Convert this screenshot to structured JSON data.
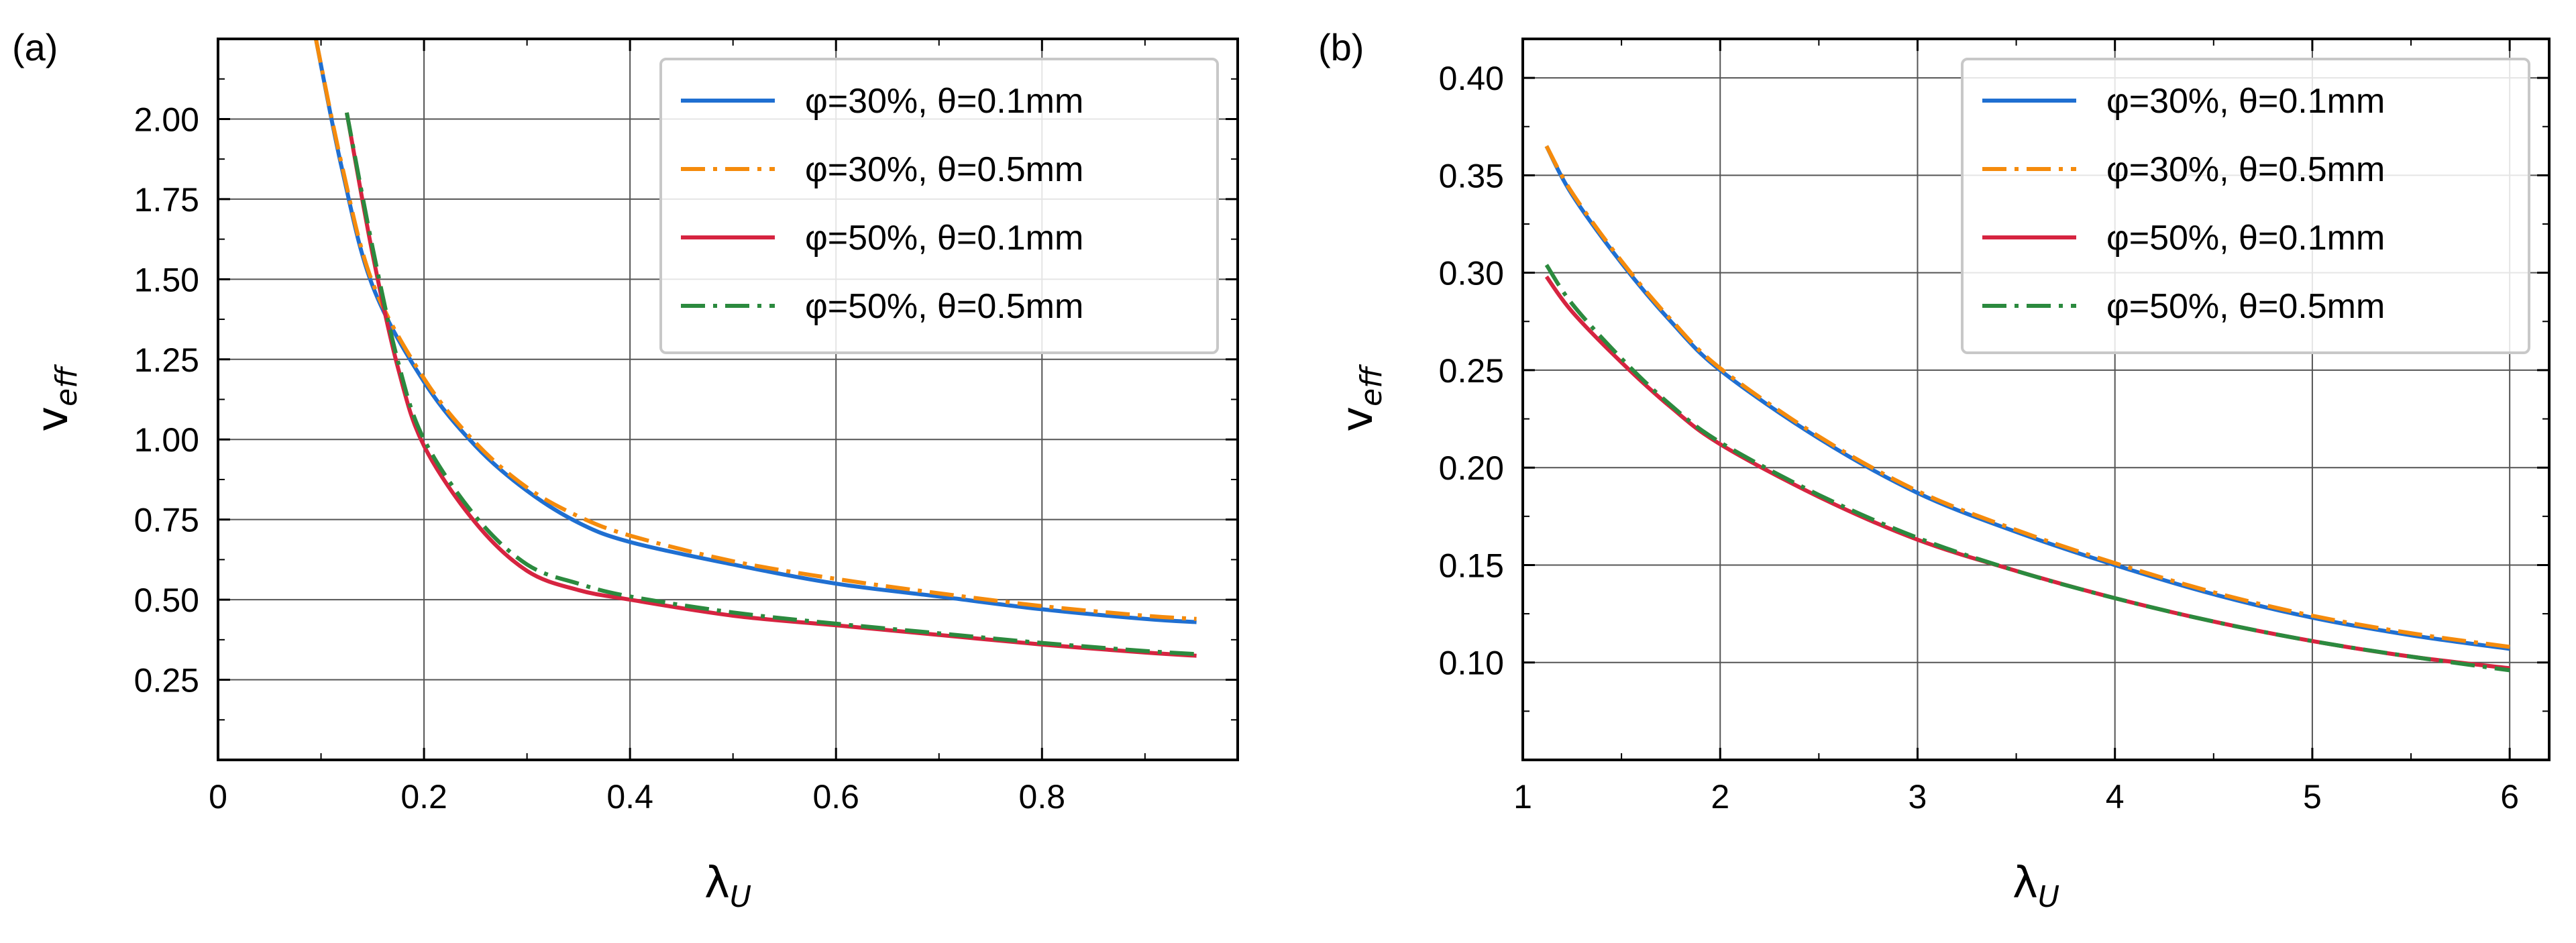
{
  "chart_data": [
    {
      "type": "line",
      "panel_label": "(a)",
      "xlabel": "λ",
      "xlabel_sub": "U",
      "ylabel": "v",
      "ylabel_sub": "eff",
      "xlim": [
        0,
        0.99
      ],
      "ylim": [
        0.0,
        2.25
      ],
      "xticks": [
        0,
        0.2,
        0.4,
        0.6,
        0.8
      ],
      "xtick_labels": [
        "0",
        "0.2",
        "0.4",
        "0.6",
        "0.8"
      ],
      "yticks": [
        0.25,
        0.5,
        0.75,
        1.0,
        1.25,
        1.5,
        1.75,
        2.0
      ],
      "ytick_labels": [
        "0.25",
        "0.50",
        "0.75",
        "1.00",
        "1.25",
        "1.50",
        "1.75",
        "2.00"
      ],
      "grid": true,
      "legend_position": "top-right",
      "series": [
        {
          "name": "φ=30%, θ=0.1mm",
          "color": "#1f6fd1",
          "style": "solid",
          "x": [
            0.095,
            0.12,
            0.15,
            0.2,
            0.25,
            0.3,
            0.35,
            0.4,
            0.5,
            0.6,
            0.7,
            0.8,
            0.9,
            0.95
          ],
          "y": [
            2.25,
            1.85,
            1.48,
            1.18,
            0.98,
            0.84,
            0.74,
            0.68,
            0.61,
            0.55,
            0.51,
            0.47,
            0.44,
            0.43
          ]
        },
        {
          "name": "φ=30%, θ=0.5mm",
          "color": "#f58b0c",
          "style": "dashdot",
          "x": [
            0.095,
            0.12,
            0.15,
            0.2,
            0.25,
            0.3,
            0.35,
            0.4,
            0.5,
            0.6,
            0.7,
            0.8,
            0.9,
            0.95
          ],
          "y": [
            2.25,
            1.86,
            1.49,
            1.19,
            0.99,
            0.85,
            0.76,
            0.7,
            0.62,
            0.565,
            0.52,
            0.48,
            0.45,
            0.44
          ]
        },
        {
          "name": "φ=50%, θ=0.1mm",
          "color": "#d62440",
          "style": "solid",
          "x": [
            0.125,
            0.15,
            0.175,
            0.2,
            0.25,
            0.3,
            0.35,
            0.4,
            0.5,
            0.6,
            0.7,
            0.8,
            0.9,
            0.95
          ],
          "y": [
            2.02,
            1.58,
            1.22,
            0.98,
            0.74,
            0.59,
            0.53,
            0.5,
            0.45,
            0.42,
            0.39,
            0.36,
            0.335,
            0.325
          ]
        },
        {
          "name": "φ=50%, θ=0.5mm",
          "color": "#2b8a3e",
          "style": "dashdot",
          "x": [
            0.125,
            0.15,
            0.175,
            0.2,
            0.25,
            0.3,
            0.35,
            0.4,
            0.5,
            0.6,
            0.7,
            0.8,
            0.9,
            0.95
          ],
          "y": [
            2.02,
            1.6,
            1.24,
            1.0,
            0.76,
            0.61,
            0.55,
            0.51,
            0.46,
            0.425,
            0.395,
            0.365,
            0.34,
            0.33
          ]
        }
      ]
    },
    {
      "type": "line",
      "panel_label": "(b)",
      "xlabel": "λ",
      "xlabel_sub": "U",
      "ylabel": "v",
      "ylabel_sub": "eff",
      "xlim": [
        1.0,
        6.2
      ],
      "ylim": [
        0.05,
        0.42
      ],
      "xticks": [
        1,
        2,
        3,
        4,
        5,
        6
      ],
      "xtick_labels": [
        "1",
        "2",
        "3",
        "4",
        "5",
        "6"
      ],
      "yticks": [
        0.1,
        0.15,
        0.2,
        0.25,
        0.3,
        0.35,
        0.4
      ],
      "ytick_labels": [
        "0.10",
        "0.15",
        "0.20",
        "0.25",
        "0.30",
        "0.35",
        "0.40"
      ],
      "grid": true,
      "legend_position": "top-right",
      "series": [
        {
          "name": "φ=30%, θ=0.1mm",
          "color": "#1f6fd1",
          "style": "solid",
          "x": [
            1.12,
            1.25,
            1.5,
            1.75,
            2.0,
            2.5,
            3.0,
            3.5,
            4.0,
            4.5,
            5.0,
            5.5,
            6.0
          ],
          "y": [
            0.365,
            0.34,
            0.305,
            0.275,
            0.25,
            0.215,
            0.187,
            0.167,
            0.15,
            0.135,
            0.123,
            0.114,
            0.107
          ]
        },
        {
          "name": "φ=30%, θ=0.5mm",
          "color": "#f58b0c",
          "style": "dashdot",
          "x": [
            1.12,
            1.25,
            1.5,
            1.75,
            2.0,
            2.5,
            3.0,
            3.5,
            4.0,
            4.5,
            5.0,
            5.5,
            6.0
          ],
          "y": [
            0.365,
            0.341,
            0.306,
            0.276,
            0.251,
            0.216,
            0.188,
            0.168,
            0.151,
            0.136,
            0.124,
            0.115,
            0.108
          ]
        },
        {
          "name": "φ=50%, θ=0.1mm",
          "color": "#d62440",
          "style": "solid",
          "x": [
            1.12,
            1.25,
            1.5,
            1.75,
            2.0,
            2.5,
            3.0,
            3.5,
            4.0,
            4.5,
            5.0,
            5.5,
            6.0
          ],
          "y": [
            0.298,
            0.28,
            0.254,
            0.231,
            0.212,
            0.185,
            0.163,
            0.147,
            0.133,
            0.121,
            0.111,
            0.103,
            0.097
          ]
        },
        {
          "name": "φ=50%, θ=0.5mm",
          "color": "#2b8a3e",
          "style": "dashdot",
          "x": [
            1.12,
            1.25,
            1.5,
            1.75,
            2.0,
            2.5,
            3.0,
            3.5,
            4.0,
            4.5,
            5.0,
            5.5,
            6.0
          ],
          "y": [
            0.304,
            0.284,
            0.256,
            0.232,
            0.213,
            0.186,
            0.164,
            0.147,
            0.133,
            0.121,
            0.111,
            0.103,
            0.096
          ]
        }
      ]
    }
  ]
}
